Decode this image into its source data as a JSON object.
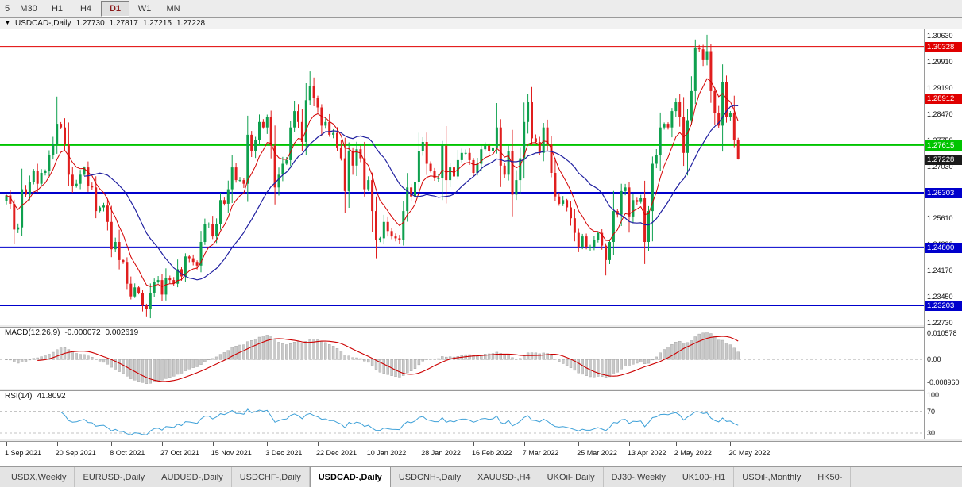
{
  "toolbar": {
    "timeframes": [
      "5",
      "M30",
      "H1",
      "H4",
      "D1",
      "W1",
      "MN"
    ],
    "active_timeframe": "D1"
  },
  "chart": {
    "title": "USDCAD-,Daily",
    "ohlc": [
      "1.27730",
      "1.27817",
      "1.27215",
      "1.27228"
    ]
  },
  "indicators": {
    "macd": {
      "label": "MACD(12,26,9)",
      "value": "-0.000072",
      "signal_value": "0.002619",
      "axis_top": "0.010578",
      "axis_zero": "0.00",
      "axis_bottom": "-0.008960"
    },
    "rsi": {
      "label": "RSI(14)",
      "value": "41.8092",
      "axis_labels": [
        "100",
        "70",
        "30"
      ],
      "levels": [
        70,
        30
      ]
    }
  },
  "chart_data": {
    "type": "candlestick",
    "symbol": "USDCAD",
    "timeframe": "Daily",
    "ylim": [
      1.2268,
      1.308
    ],
    "closes": [
      1.2623,
      1.26,
      1.2529,
      1.2535,
      1.264,
      1.2625,
      1.266,
      1.269,
      1.2655,
      1.2685,
      1.269,
      1.2735,
      1.2765,
      1.282,
      1.281,
      1.2765,
      1.268,
      1.265,
      1.2655,
      1.268,
      1.27,
      1.265,
      1.2645,
      1.258,
      1.259,
      1.2595,
      1.255,
      1.2475,
      1.2495,
      1.2445,
      1.244,
      1.238,
      1.2345,
      1.237,
      1.2355,
      1.232,
      1.231,
      1.2355,
      1.2385,
      1.239,
      1.235,
      1.2395,
      1.239,
      1.238,
      1.242,
      1.24,
      1.2455,
      1.245,
      1.244,
      1.243,
      1.2495,
      1.2545,
      1.2545,
      1.251,
      1.2545,
      1.261,
      1.26,
      1.264,
      1.27,
      1.2665,
      1.2665,
      1.2655,
      1.279,
      1.2745,
      1.2775,
      1.2825,
      1.281,
      1.284,
      1.276,
      1.2645,
      1.268,
      1.271,
      1.272,
      1.281,
      1.2855,
      1.2825,
      1.277,
      1.2885,
      1.2925,
      1.289,
      1.2865,
      1.2815,
      1.2825,
      1.279,
      1.2795,
      1.2755,
      1.2725,
      1.2635,
      1.2745,
      1.2705,
      1.275,
      1.2725,
      1.264,
      1.2665,
      1.258,
      1.25,
      1.2505,
      1.255,
      1.2525,
      1.251,
      1.2505,
      1.25,
      1.258,
      1.2645,
      1.262,
      1.266,
      1.2745,
      1.277,
      1.271,
      1.269,
      1.267,
      1.267,
      1.276,
      1.2665,
      1.27,
      1.2675,
      1.272,
      1.274,
      1.274,
      1.272,
      1.2685,
      1.271,
      1.275,
      1.276,
      1.2745,
      1.2755,
      1.281,
      1.2705,
      1.268,
      1.2745,
      1.2625,
      1.2665,
      1.2725,
      1.2825,
      1.288,
      1.278,
      1.277,
      1.274,
      1.281,
      1.2765,
      1.2685,
      1.262,
      1.26,
      1.261,
      1.259,
      1.256,
      1.252,
      1.248,
      1.251,
      1.248,
      1.248,
      1.25,
      1.252,
      1.2485,
      1.2445,
      1.2495,
      1.258,
      1.257,
      1.2635,
      1.2645,
      1.2565,
      1.261,
      1.2605,
      1.2615,
      1.2495,
      1.258,
      1.271,
      1.2735,
      1.281,
      1.282,
      1.281,
      1.2855,
      1.288,
      1.284,
      1.274,
      1.283,
      1.291,
      1.303,
      1.3025,
      1.2995,
      1.302,
      1.291,
      1.285,
      1.2815,
      1.2935,
      1.284,
      1.285,
      1.2775,
      1.27228
    ],
    "wick_overrides": {
      "13": {
        "h": 1.2895
      },
      "36": {
        "l": 1.2288
      },
      "78": {
        "h": 1.2964
      },
      "95": {
        "l": 1.245
      },
      "126": {
        "h": 1.2877
      },
      "134": {
        "h": 1.2901
      },
      "154": {
        "l": 1.2403
      },
      "177": {
        "h": 1.3052
      },
      "180": {
        "h": 1.3065
      },
      "188": {
        "h": 1.27817,
        "l": 1.27215
      }
    },
    "hlines": [
      {
        "price": 1.30328,
        "label": "1.30328",
        "color": "#e00000",
        "width": 1
      },
      {
        "price": 1.28912,
        "label": "1.28912",
        "color": "#e00000",
        "width": 1
      },
      {
        "price": 1.27615,
        "label": "1.27615",
        "color": "#00c400",
        "width": 2
      },
      {
        "price": 1.26303,
        "label": "1.26303",
        "color": "#0000cc",
        "width": 2
      },
      {
        "price": 1.248,
        "label": "1.24800",
        "color": "#0000cc",
        "width": 2
      },
      {
        "price": 1.23203,
        "label": "1.23203",
        "color": "#0000cc",
        "width": 2
      }
    ],
    "current_price": {
      "price": 1.27228,
      "label": "1.27228",
      "bg": "#1a1a1a"
    },
    "price_axis_labels": [
      "1.30630",
      "1.29910",
      "1.29190",
      "1.28470",
      "1.27750",
      "1.27030",
      "1.26310",
      "1.25610",
      "1.24890",
      "1.24170",
      "1.23450",
      "1.22730"
    ],
    "dates": [
      {
        "label": "1 Sep 2021",
        "i": 0
      },
      {
        "label": "20 Sep 2021",
        "i": 13
      },
      {
        "label": "8 Oct 2021",
        "i": 27
      },
      {
        "label": "27 Oct 2021",
        "i": 40
      },
      {
        "label": "15 Nov 2021",
        "i": 53
      },
      {
        "label": "3 Dec 2021",
        "i": 67
      },
      {
        "label": "22 Dec 2021",
        "i": 80
      },
      {
        "label": "10 Jan 2022",
        "i": 93
      },
      {
        "label": "28 Jan 2022",
        "i": 107
      },
      {
        "label": "16 Feb 2022",
        "i": 120
      },
      {
        "label": "7 Mar 2022",
        "i": 133
      },
      {
        "label": "25 Mar 2022",
        "i": 147
      },
      {
        "label": "13 Apr 2022",
        "i": 160
      },
      {
        "label": "2 May 2022",
        "i": 172
      },
      {
        "label": "20 May 2022",
        "i": 186
      }
    ],
    "colors": {
      "up": "#0ea04e",
      "down": "#e01e1e",
      "ma_fast": "#d40000",
      "ma_slow": "#2020a0",
      "macd_hist": "#c9c9c9",
      "macd_hist_border": "#9e9e9e",
      "macd_signal": "#cc0000",
      "rsi": "#3da0d8"
    }
  },
  "tabs": {
    "items": [
      "USDX,Weekly",
      "EURUSD-,Daily",
      "AUDUSD-,Daily",
      "USDCHF-,Daily",
      "USDCAD-,Daily",
      "USDCNH-,Daily",
      "XAUUSD-,H4",
      "UKOil-,Daily",
      "DJ30-,Weekly",
      "UK100-,H1",
      "USOil-,Monthly",
      "HK50-"
    ],
    "active": "USDCAD-,Daily"
  }
}
